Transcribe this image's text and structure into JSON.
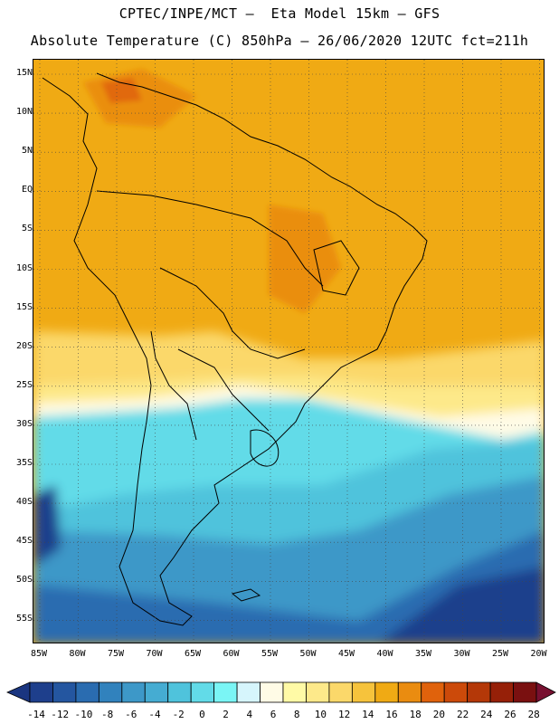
{
  "header": {
    "line1": "CPTEC/INPE/MCT –  Eta Model 15km – GFS",
    "line2": "Absolute Temperature (C) 850hPa – 26/06/2020 12UTC fct=211h"
  },
  "map": {
    "region": "South America",
    "lat_labels": [
      "15N",
      "10N",
      "5N",
      "EQ",
      "5S",
      "10S",
      "15S",
      "20S",
      "25S",
      "30S",
      "35S",
      "40S",
      "45S",
      "50S",
      "55S"
    ],
    "lon_labels": [
      "85W",
      "80W",
      "75W",
      "70W",
      "65W",
      "60W",
      "55W",
      "50W",
      "45W",
      "40W",
      "35W",
      "30W",
      "25W",
      "20W"
    ]
  },
  "colorbar": {
    "labels": [
      "-14",
      "-12",
      "-10",
      "-8",
      "-6",
      "-4",
      "-2",
      "0",
      "2",
      "4",
      "6",
      "8",
      "10",
      "12",
      "14",
      "16",
      "18",
      "20",
      "22",
      "24",
      "26",
      "28"
    ],
    "colors": [
      "#1e3f8c",
      "#2456a0",
      "#2a6cb0",
      "#3182bd",
      "#3d98c8",
      "#45acd2",
      "#4fc3dc",
      "#62dbe8",
      "#7af5f5",
      "#d6f5fc",
      "#fffbe6",
      "#fffaa6",
      "#fde98a",
      "#fbd86a",
      "#f6c33c",
      "#f0aa14",
      "#ea8c10",
      "#e0620c",
      "#cc4a0a",
      "#b43808",
      "#962008",
      "#7a1010"
    ],
    "under_color": "#1a3580",
    "over_color": "#781030"
  }
}
